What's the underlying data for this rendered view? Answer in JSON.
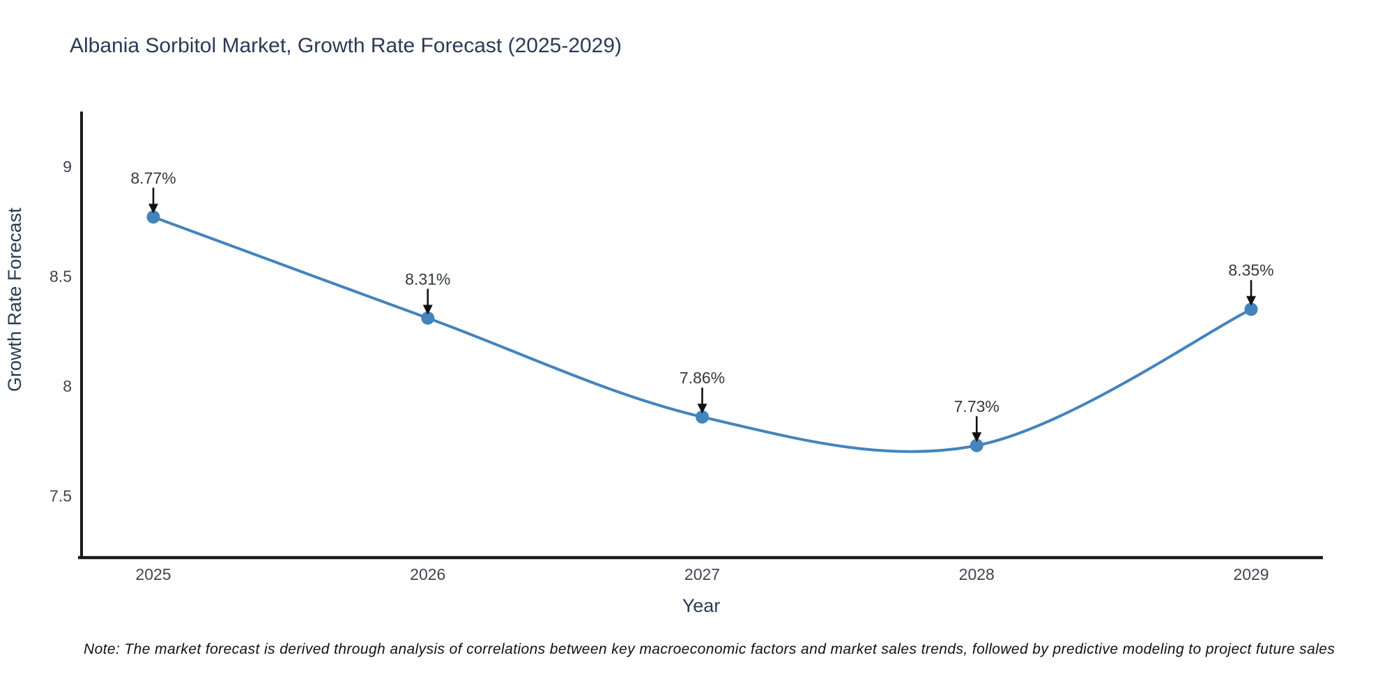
{
  "chart_data": {
    "type": "line",
    "title": "Albania Sorbitol Market, Growth Rate Forecast (2025-2029)",
    "xlabel": "Year",
    "ylabel": "Growth Rate Forecast",
    "categories": [
      "2025",
      "2026",
      "2027",
      "2028",
      "2029"
    ],
    "series": [
      {
        "name": "Growth Rate Forecast",
        "values": [
          8.77,
          8.31,
          7.86,
          7.73,
          8.35
        ],
        "point_labels": [
          "8.77%",
          "8.31%",
          "7.86%",
          "7.73%",
          "8.35%"
        ]
      }
    ],
    "line_shape": "spline",
    "markers": true,
    "annotations_have_arrows": true,
    "ylim": [
      7.22,
      9.25
    ],
    "yticks": [
      7.5,
      8,
      8.5,
      9
    ],
    "ytick_labels": [
      "7.5",
      "8",
      "8.5",
      "9"
    ],
    "grid": false,
    "legend_position": "none",
    "colors": {
      "line": "#4384bc",
      "marker": "#4384bc",
      "arrow": "#111111",
      "axis_line": "#1a1a1a",
      "title_text": "#2b3a55",
      "tick_text": "#3f4450",
      "note_text": "#111111",
      "background": "#ffffff"
    },
    "note": "Note: The market forecast is derived through analysis of correlations between key macroeconomic factors and market sales trends, followed by predictive modeling to project future sales"
  }
}
